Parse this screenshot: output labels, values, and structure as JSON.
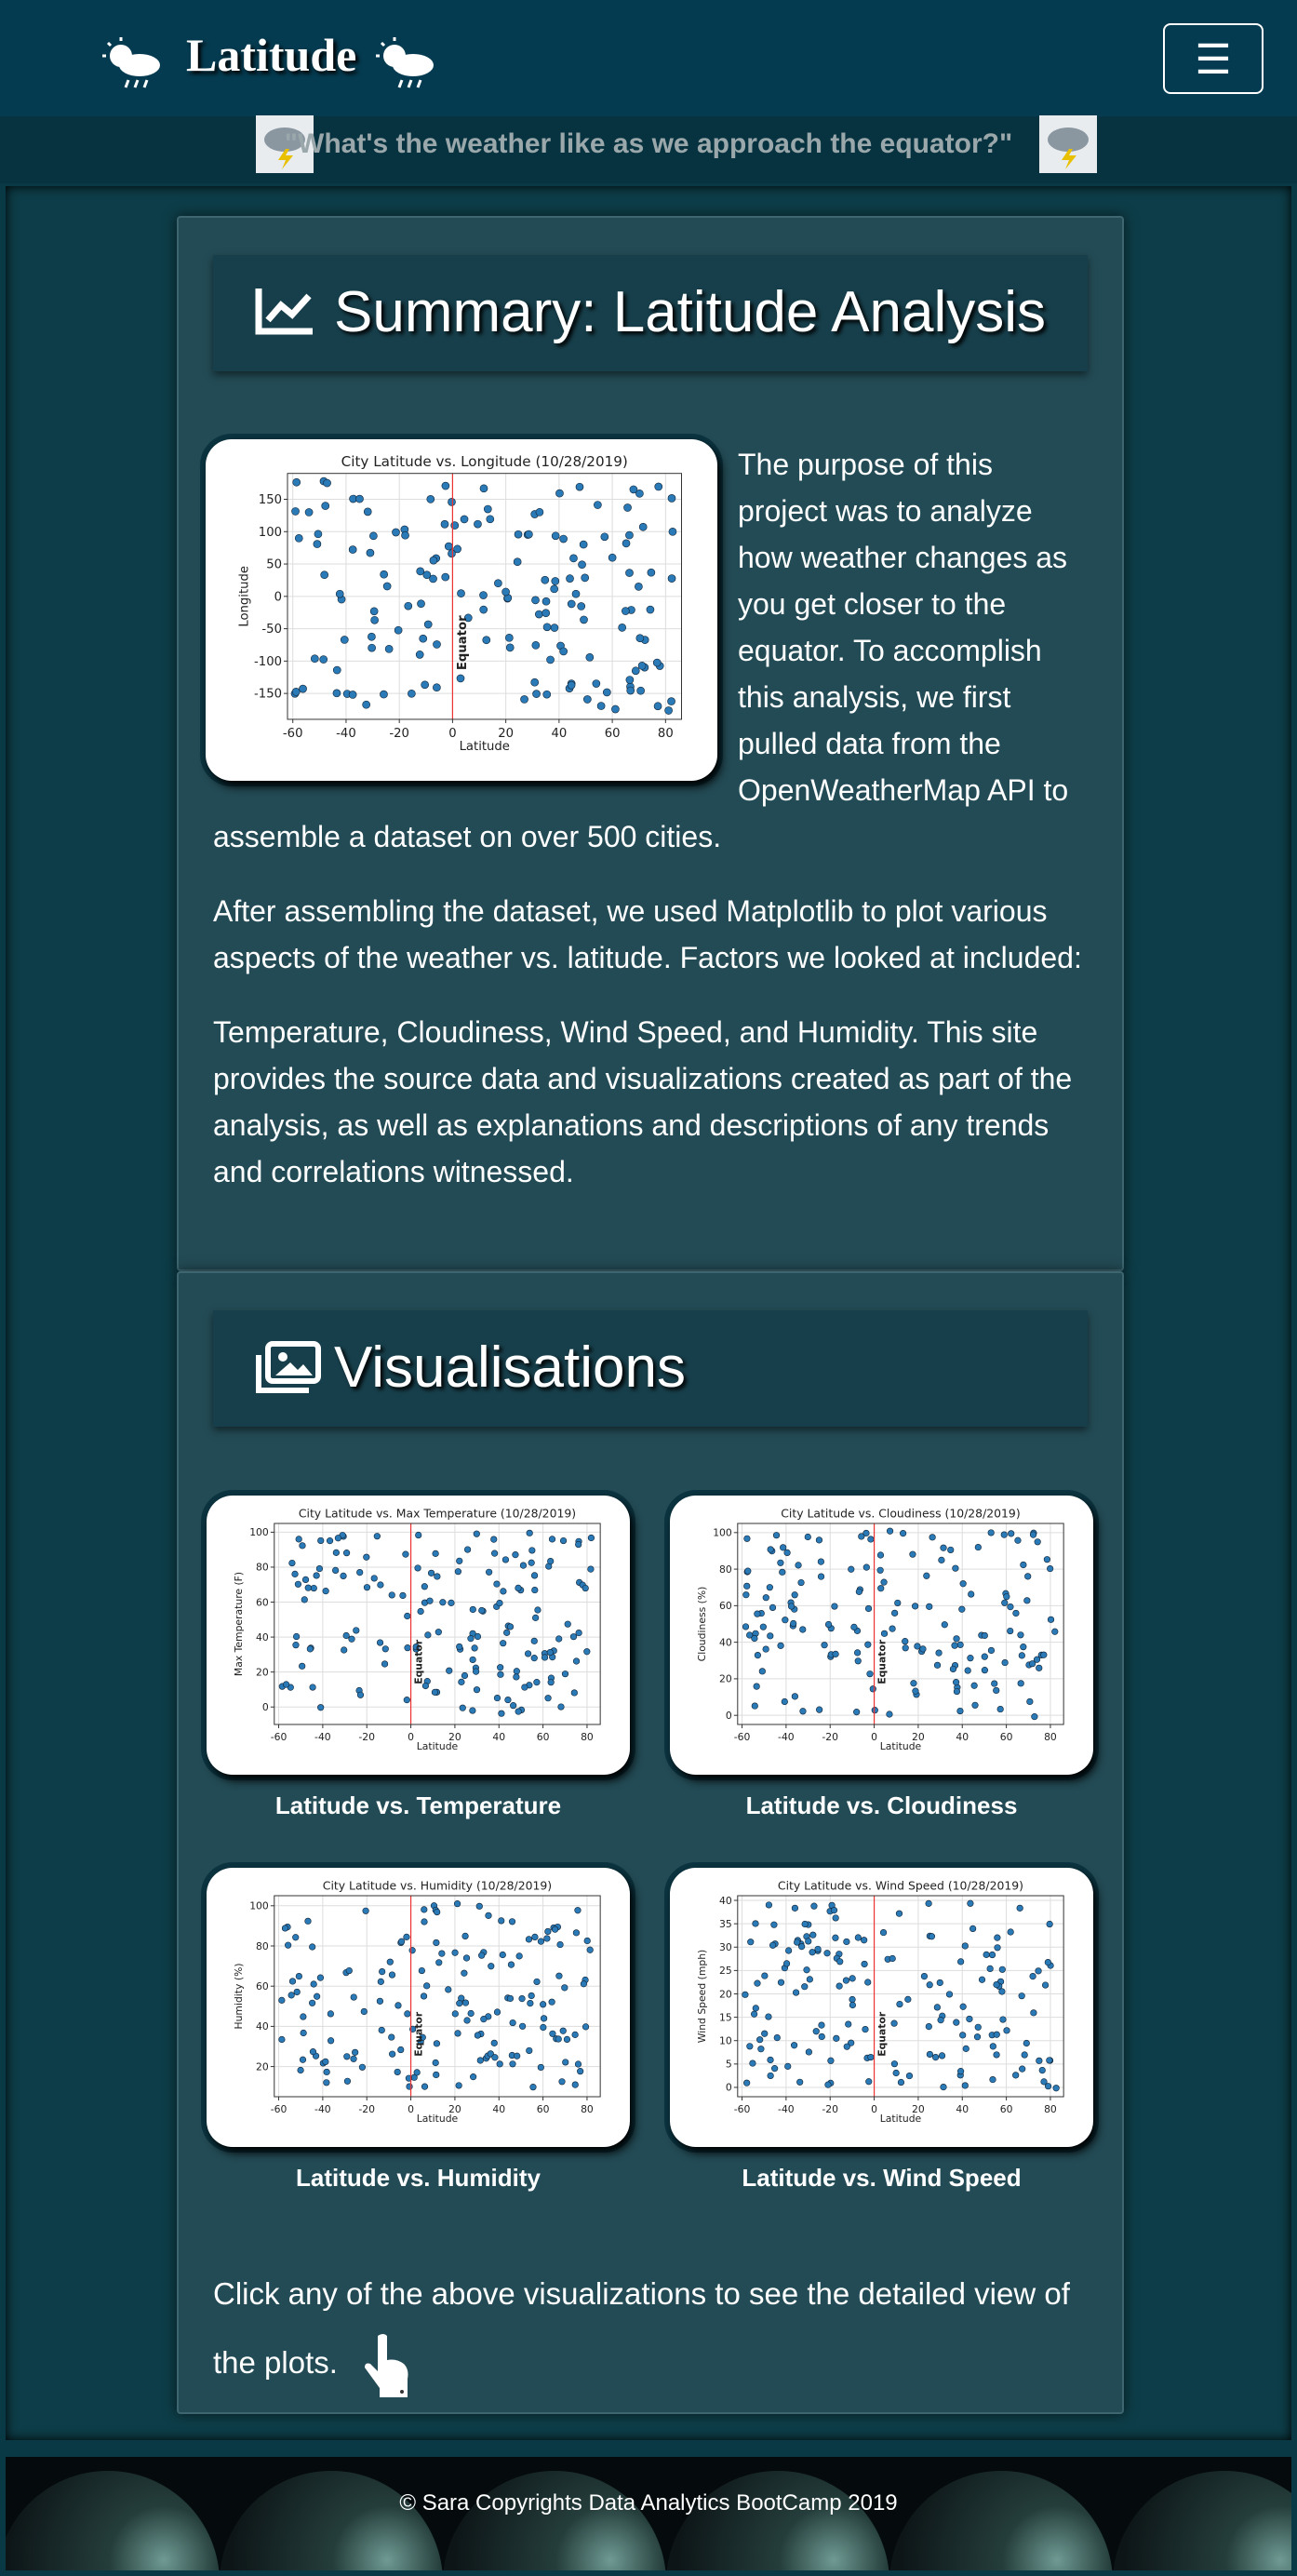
{
  "header": {
    "brand": "Latitude",
    "menu_icon": "☰"
  },
  "quote": "\"What's the weather like as we approach the equator?\"",
  "summary": {
    "heading": "Summary: Latitude Analysis",
    "paragraphs": [
      "The purpose of this project was to analyze how weather changes as you get closer to the equator. To accomplish this analysis, we first pulled data from the OpenWeatherMap API to assemble a dataset on over 500 cities.",
      "After assembling the dataset, we used Matplotlib to plot various aspects of the weather vs. latitude. Factors we looked at included:",
      "Temperature, Cloudiness, Wind Speed, and Humidity. This site provides the source data and visualizations created as part of the analysis, as well as explanations and descriptions of any trends and correlations witnessed."
    ],
    "plot": {
      "title": "City Latitude vs. Longitude (10/28/2019)",
      "xlabel": "Latitude",
      "ylabel": "Longitude",
      "annotation": "Equator",
      "equator_x": 0,
      "xlim": [
        -62,
        86
      ],
      "xticks": [
        -60,
        -40,
        -20,
        0,
        20,
        40,
        60,
        80
      ],
      "ylim": [
        -190,
        190
      ],
      "yticks": [
        -150,
        -100,
        -50,
        0,
        50,
        100,
        150
      ]
    }
  },
  "visualisations": {
    "heading": "Visualisations",
    "plots": [
      {
        "title": "City Latitude vs. Max Temperature (10/28/2019)",
        "xlabel": "Latitude",
        "ylabel": "Max Temperature (F)",
        "annotation": "Equator",
        "equator_x": 0,
        "caption": "Latitude vs. Temperature",
        "xlim": [
          -62,
          86
        ],
        "xticks": [
          -60,
          -40,
          -20,
          0,
          20,
          40,
          60,
          80
        ],
        "ylim": [
          -10,
          105
        ],
        "yticks": [
          0,
          20,
          40,
          60,
          80,
          100
        ]
      },
      {
        "title": "City Latitude vs. Cloudiness (10/28/2019)",
        "xlabel": "Latitude",
        "ylabel": "Cloudiness (%)",
        "annotation": "Equator",
        "equator_x": 0,
        "caption": "Latitude vs. Cloudiness",
        "xlim": [
          -62,
          86
        ],
        "xticks": [
          -60,
          -40,
          -20,
          0,
          20,
          40,
          60,
          80
        ],
        "ylim": [
          -5,
          105
        ],
        "yticks": [
          0,
          20,
          40,
          60,
          80,
          100
        ]
      },
      {
        "title": "City Latitude vs. Humidity (10/28/2019)",
        "xlabel": "Latitude",
        "ylabel": "Humidity (%)",
        "annotation": "Equator",
        "equator_x": 0,
        "caption": "Latitude vs. Humidity",
        "xlim": [
          -62,
          86
        ],
        "xticks": [
          -60,
          -40,
          -20,
          0,
          20,
          40,
          60,
          80
        ],
        "ylim": [
          5,
          105
        ],
        "yticks": [
          20,
          40,
          60,
          80,
          100
        ]
      },
      {
        "title": "City Latitude vs. Wind Speed (10/28/2019)",
        "xlabel": "Latitude",
        "ylabel": "Wind Speed (mph)",
        "annotation": "Equator",
        "equator_x": 0,
        "caption": "Latitude vs. Wind Speed",
        "xlim": [
          -62,
          86
        ],
        "xticks": [
          -60,
          -40,
          -20,
          0,
          20,
          40,
          60,
          80
        ],
        "ylim": [
          -2,
          41
        ],
        "yticks": [
          0,
          5,
          10,
          15,
          20,
          25,
          30,
          35,
          40
        ]
      }
    ],
    "note": "Click any of the above visualizations to see the detailed view of the plots."
  },
  "footer": "© Sara Copyrights Data Analytics BootCamp 2019"
}
